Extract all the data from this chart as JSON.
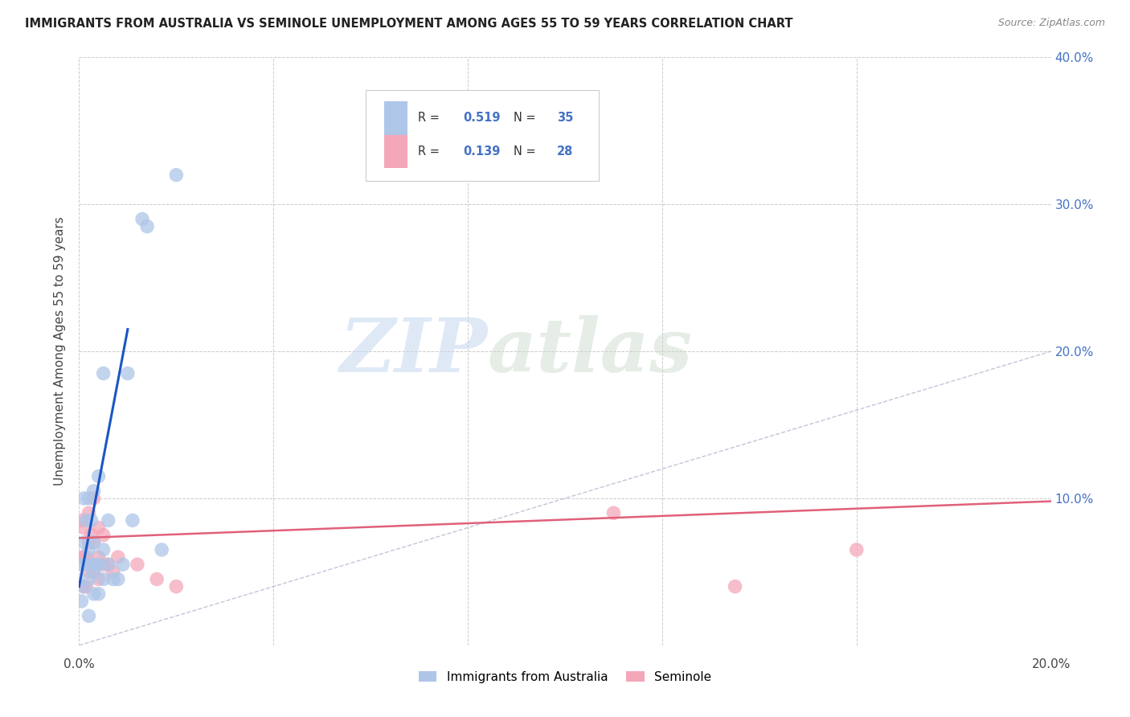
{
  "title": "IMMIGRANTS FROM AUSTRALIA VS SEMINOLE UNEMPLOYMENT AMONG AGES 55 TO 59 YEARS CORRELATION CHART",
  "source": "Source: ZipAtlas.com",
  "ylabel": "Unemployment Among Ages 55 to 59 years",
  "legend_labels": [
    "Immigrants from Australia",
    "Seminole"
  ],
  "xlim": [
    0.0,
    0.2
  ],
  "ylim": [
    0.0,
    0.4
  ],
  "xticks": [
    0.0,
    0.04,
    0.08,
    0.12,
    0.16,
    0.2
  ],
  "yticks": [
    0.0,
    0.1,
    0.2,
    0.3,
    0.4
  ],
  "blue_color": "#aec6e8",
  "pink_color": "#f4a7b9",
  "blue_line_color": "#1a56c4",
  "pink_line_color": "#e0607a",
  "blue_scatter": {
    "x": [
      0.0005,
      0.0005,
      0.0008,
      0.001,
      0.001,
      0.0015,
      0.0015,
      0.002,
      0.002,
      0.002,
      0.002,
      0.0025,
      0.0025,
      0.003,
      0.003,
      0.003,
      0.003,
      0.0035,
      0.004,
      0.004,
      0.004,
      0.005,
      0.005,
      0.005,
      0.006,
      0.006,
      0.007,
      0.008,
      0.009,
      0.01,
      0.011,
      0.013,
      0.014,
      0.017,
      0.02
    ],
    "y": [
      0.03,
      0.055,
      0.04,
      0.07,
      0.1,
      0.055,
      0.085,
      0.02,
      0.045,
      0.065,
      0.1,
      0.055,
      0.085,
      0.035,
      0.05,
      0.07,
      0.105,
      0.055,
      0.035,
      0.055,
      0.115,
      0.045,
      0.065,
      0.185,
      0.055,
      0.085,
      0.045,
      0.045,
      0.055,
      0.185,
      0.085,
      0.29,
      0.285,
      0.065,
      0.32
    ]
  },
  "pink_scatter": {
    "x": [
      0.0005,
      0.0005,
      0.001,
      0.001,
      0.001,
      0.0015,
      0.0015,
      0.002,
      0.002,
      0.002,
      0.0025,
      0.003,
      0.003,
      0.003,
      0.004,
      0.004,
      0.004,
      0.005,
      0.005,
      0.006,
      0.007,
      0.008,
      0.012,
      0.016,
      0.02,
      0.11,
      0.135,
      0.16
    ],
    "y": [
      0.06,
      0.085,
      0.04,
      0.06,
      0.08,
      0.04,
      0.06,
      0.05,
      0.07,
      0.09,
      0.075,
      0.05,
      0.07,
      0.1,
      0.045,
      0.06,
      0.08,
      0.055,
      0.075,
      0.055,
      0.05,
      0.06,
      0.055,
      0.045,
      0.04,
      0.09,
      0.04,
      0.065
    ]
  },
  "blue_line": {
    "x": [
      0.0,
      0.01
    ],
    "y": [
      0.04,
      0.215
    ]
  },
  "pink_line": {
    "x": [
      0.0,
      0.2
    ],
    "y": [
      0.073,
      0.098
    ]
  },
  "diag_line": {
    "x": [
      0.0,
      0.4
    ],
    "y": [
      0.0,
      0.4
    ]
  },
  "watermark_zip": "ZIP",
  "watermark_atlas": "atlas",
  "background_color": "#ffffff",
  "grid_color": "#cccccc"
}
